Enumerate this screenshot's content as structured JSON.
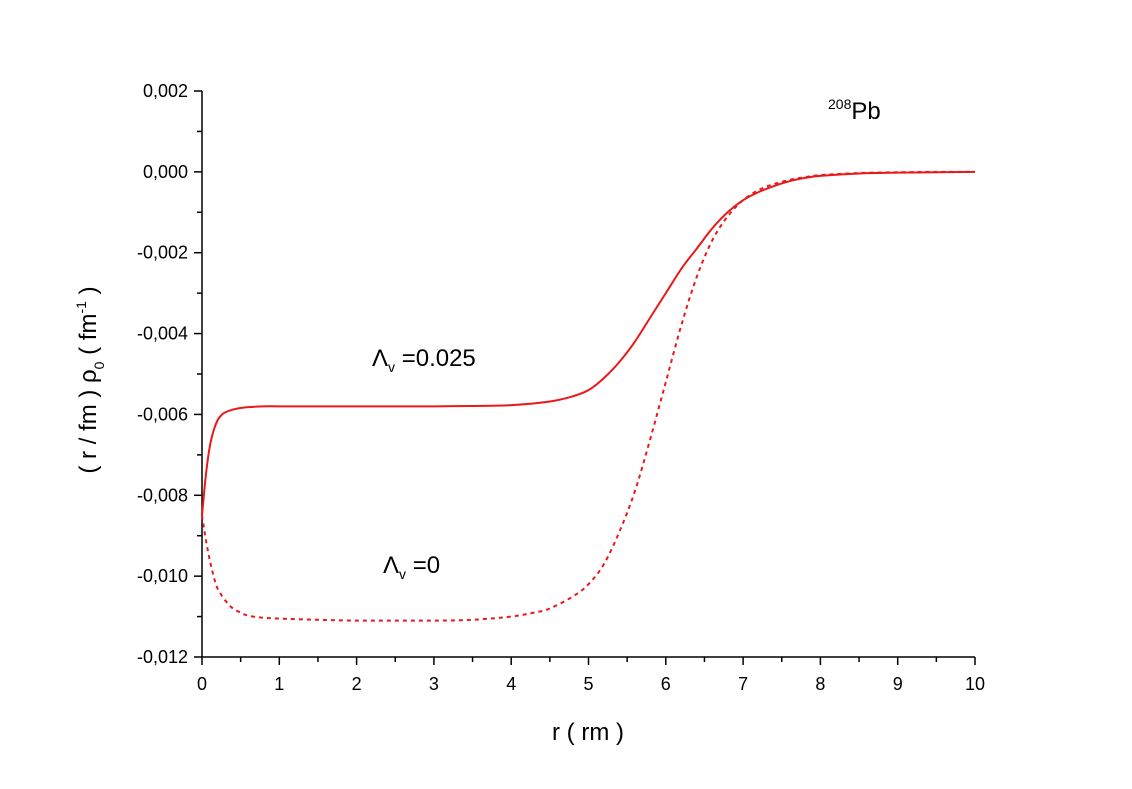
{
  "chart_data": {
    "type": "line",
    "title": "",
    "xlabel": "r ( rm )",
    "ylabel": {
      "part1": "( r / fm ) ",
      "rho": "ρ",
      "rho_sub": "0",
      "part2": "   ( fm",
      "exp": "-1",
      "part3": " )"
    },
    "xlim": [
      0,
      10
    ],
    "ylim": [
      -0.012,
      0.002
    ],
    "xticks": [
      "0",
      "1",
      "2",
      "3",
      "4",
      "5",
      "6",
      "7",
      "8",
      "9",
      "10"
    ],
    "yticks": [
      "0,002",
      "0,000",
      "-0,002",
      "-0,004",
      "-0,006",
      "-0,008",
      "-0,010",
      "-0,012"
    ],
    "grid": false,
    "series": [
      {
        "style": "solid",
        "color": "#e8191a",
        "label": {
          "lambda": "Λ",
          "sub": "v",
          "value": " =0.025"
        },
        "x": [
          0,
          0.05,
          0.1,
          0.15,
          0.2,
          0.25,
          0.3,
          0.4,
          0.5,
          0.6,
          0.8,
          1,
          1.5,
          2,
          2.5,
          3,
          3.5,
          4,
          4.5,
          4.8,
          5,
          5.2,
          5.4,
          5.6,
          5.8,
          6,
          6.2,
          6.4,
          6.6,
          6.8,
          7,
          7.2,
          7.4,
          7.6,
          7.8,
          8,
          8.5,
          9,
          9.5,
          10
        ],
        "y": [
          -0.0085,
          -0.0075,
          -0.0068,
          -0.0064,
          -0.00615,
          -0.00602,
          -0.00595,
          -0.00588,
          -0.00584,
          -0.00582,
          -0.0058,
          -0.0058,
          -0.0058,
          -0.0058,
          -0.0058,
          -0.0058,
          -0.00579,
          -0.00577,
          -0.00568,
          -0.00555,
          -0.0054,
          -0.0051,
          -0.0047,
          -0.0042,
          -0.0036,
          -0.003,
          -0.0024,
          -0.0019,
          -0.0014,
          -0.001,
          -0.0007,
          -0.0005,
          -0.00035,
          -0.00023,
          -0.00015,
          -0.0001,
          -4e-05,
          -2e-05,
          -1e-05,
          0.0
        ]
      },
      {
        "style": "dotted",
        "color": "#e8191a",
        "label": {
          "lambda": "Λ",
          "sub": "v",
          "value": " =0"
        },
        "x": [
          0,
          0.05,
          0.1,
          0.15,
          0.2,
          0.3,
          0.4,
          0.5,
          0.6,
          0.8,
          1,
          1.5,
          2,
          2.5,
          3,
          3.5,
          4,
          4.3,
          4.5,
          4.8,
          5,
          5.2,
          5.4,
          5.6,
          5.8,
          6,
          6.2,
          6.4,
          6.6,
          6.8,
          7,
          7.2,
          7.4,
          7.6,
          7.8,
          8,
          8.5,
          9,
          9.5,
          10
        ],
        "y": [
          -0.0085,
          -0.0091,
          -0.0096,
          -0.01,
          -0.0103,
          -0.0106,
          -0.0108,
          -0.0109,
          -0.01098,
          -0.01103,
          -0.01105,
          -0.01108,
          -0.0111,
          -0.0111,
          -0.0111,
          -0.01108,
          -0.011,
          -0.0109,
          -0.0108,
          -0.0105,
          -0.0102,
          -0.0097,
          -0.0089,
          -0.0079,
          -0.0066,
          -0.0052,
          -0.0038,
          -0.0026,
          -0.0017,
          -0.0011,
          -0.0007,
          -0.00045,
          -0.0003,
          -0.0002,
          -0.00013,
          -8e-05,
          -3e-05,
          -1e-05,
          0.0,
          0.0
        ]
      }
    ],
    "annotations": [
      {
        "nucleus_mass": "208",
        "nucleus_symbol": "Pb"
      }
    ]
  }
}
